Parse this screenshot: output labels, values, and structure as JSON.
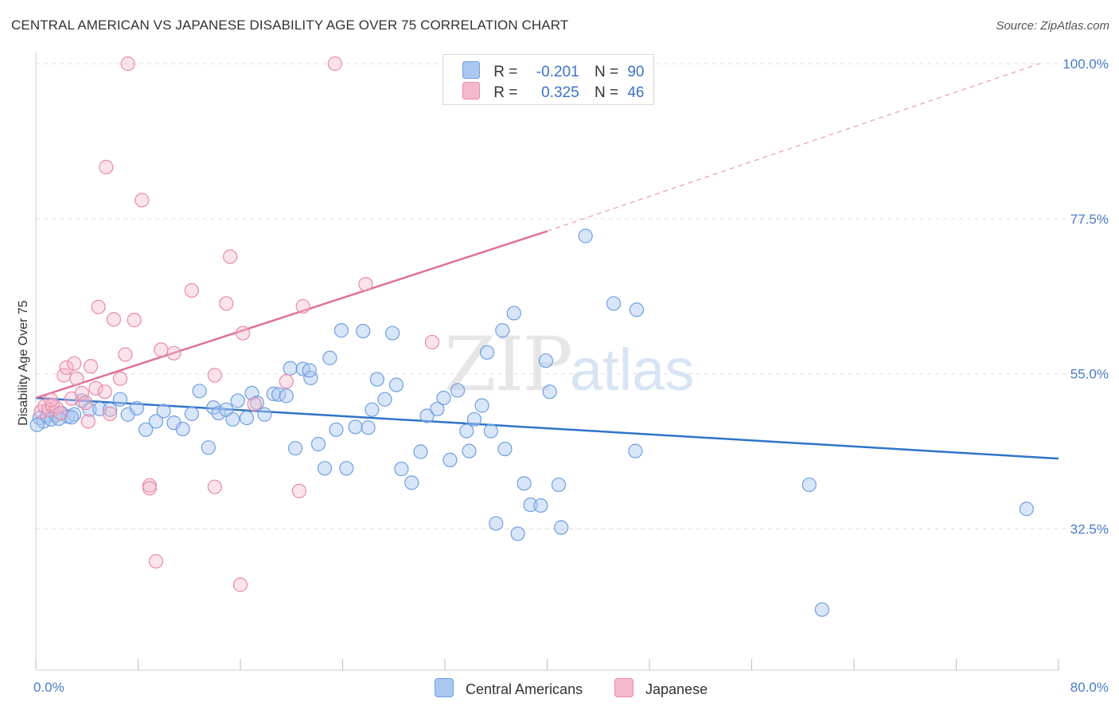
{
  "title": "CENTRAL AMERICAN VS JAPANESE DISABILITY AGE OVER 75 CORRELATION CHART",
  "source": "Source: ZipAtlas.com",
  "watermark": {
    "zip": "ZIP",
    "atlas": "atlas"
  },
  "colors": {
    "blue": "#6f9fe0",
    "blue_fill": "#aac7f2",
    "blue_line": "#2e74c8",
    "pink": "#e88aa8",
    "pink_fill": "#f5b9cc",
    "pink_line": "#e07099",
    "tick_text": "#4a7cc9",
    "grid": "#dddddd"
  },
  "legend": {
    "r_label": "R =",
    "n_label": "N =",
    "blue": {
      "r": "-0.201",
      "n": "90"
    },
    "pink": {
      "r": "0.325",
      "n": "46"
    }
  },
  "bottom_legend": {
    "blue": "Central Americans",
    "pink": "Japanese"
  },
  "chart_data": {
    "type": "scatter",
    "title": "CENTRAL AMERICAN VS JAPANESE DISABILITY AGE OVER 75 CORRELATION CHART",
    "xlabel": "",
    "ylabel": "Disability Age Over 75",
    "xlim": [
      0,
      80
    ],
    "ylim": [
      12,
      100
    ],
    "x_tick_labels": [
      "0.0%",
      "80.0%"
    ],
    "y_ticks": [
      32.5,
      55.0,
      77.5,
      100.0
    ],
    "y_tick_labels": [
      "32.5%",
      "55.0%",
      "77.5%",
      "100.0%"
    ],
    "grid": true,
    "legend_placement": "top-center",
    "series": [
      {
        "name": "Central Americans",
        "color": "#6f9fe0",
        "trend": {
          "x": [
            0,
            80
          ],
          "y": [
            51.5,
            42.7
          ]
        },
        "points": [
          [
            0.3,
            48.6
          ],
          [
            0.6,
            48.1
          ],
          [
            0.9,
            48.9
          ],
          [
            1.2,
            48.4
          ],
          [
            1.6,
            49.0
          ],
          [
            2.0,
            49.3
          ],
          [
            2.5,
            48.8
          ],
          [
            3.0,
            49.1
          ],
          [
            3.6,
            51.1
          ],
          [
            4.2,
            49.8
          ],
          [
            5.0,
            49.9
          ],
          [
            5.8,
            49.8
          ],
          [
            6.6,
            51.3
          ],
          [
            7.2,
            49.1
          ],
          [
            7.9,
            50.0
          ],
          [
            8.6,
            46.9
          ],
          [
            9.4,
            48.1
          ],
          [
            10.0,
            49.6
          ],
          [
            10.8,
            47.9
          ],
          [
            11.5,
            47.0
          ],
          [
            12.2,
            49.2
          ],
          [
            12.8,
            52.5
          ],
          [
            13.5,
            44.3
          ],
          [
            13.9,
            50.1
          ],
          [
            14.3,
            49.3
          ],
          [
            14.9,
            49.8
          ],
          [
            15.4,
            48.4
          ],
          [
            15.8,
            51.1
          ],
          [
            16.5,
            48.6
          ],
          [
            16.9,
            52.2
          ],
          [
            17.3,
            50.8
          ],
          [
            17.9,
            49.1
          ],
          [
            18.6,
            52.1
          ],
          [
            19.0,
            52.0
          ],
          [
            19.6,
            51.8
          ],
          [
            19.9,
            55.8
          ],
          [
            20.3,
            44.2
          ],
          [
            20.9,
            55.7
          ],
          [
            21.5,
            54.4
          ],
          [
            22.1,
            44.8
          ],
          [
            22.6,
            41.3
          ],
          [
            23.0,
            57.3
          ],
          [
            23.5,
            46.9
          ],
          [
            23.9,
            61.3
          ],
          [
            24.3,
            41.3
          ],
          [
            25.0,
            47.3
          ],
          [
            25.6,
            61.2
          ],
          [
            26.3,
            49.8
          ],
          [
            26.7,
            54.2
          ],
          [
            27.3,
            51.3
          ],
          [
            27.9,
            60.9
          ],
          [
            28.2,
            53.4
          ],
          [
            28.6,
            41.2
          ],
          [
            29.4,
            39.2
          ],
          [
            30.1,
            43.7
          ],
          [
            30.6,
            48.9
          ],
          [
            31.4,
            49.9
          ],
          [
            31.9,
            51.5
          ],
          [
            32.4,
            42.5
          ],
          [
            33.0,
            52.6
          ],
          [
            33.7,
            46.7
          ],
          [
            33.9,
            43.8
          ],
          [
            34.3,
            48.4
          ],
          [
            34.9,
            50.4
          ],
          [
            35.3,
            58.1
          ],
          [
            35.6,
            46.7
          ],
          [
            36.0,
            33.3
          ],
          [
            36.5,
            61.3
          ],
          [
            36.7,
            44.1
          ],
          [
            37.4,
            63.8
          ],
          [
            37.7,
            31.8
          ],
          [
            38.2,
            39.1
          ],
          [
            38.7,
            36.0
          ],
          [
            39.5,
            35.9
          ],
          [
            39.9,
            56.9
          ],
          [
            40.2,
            52.4
          ],
          [
            40.9,
            38.9
          ],
          [
            41.1,
            32.7
          ],
          [
            43.0,
            75.0
          ],
          [
            45.2,
            65.2
          ],
          [
            46.9,
            43.8
          ],
          [
            47.0,
            64.3
          ],
          [
            60.5,
            38.9
          ],
          [
            61.5,
            20.8
          ],
          [
            77.5,
            35.4
          ],
          [
            0.1,
            47.6
          ],
          [
            1.8,
            48.5
          ],
          [
            2.8,
            48.7
          ],
          [
            21.4,
            55.5
          ],
          [
            26.0,
            47.2
          ]
        ]
      },
      {
        "name": "Japanese",
        "color": "#e88aa8",
        "trend": {
          "x": [
            0,
            40
          ],
          "y": [
            51.5,
            75.7
          ]
        },
        "trend_dashed": {
          "x": [
            40,
            78.5
          ],
          "y": [
            75.7,
            100
          ]
        },
        "points": [
          [
            0.4,
            49.5
          ],
          [
            0.7,
            50.3
          ],
          [
            1.0,
            49.8
          ],
          [
            1.3,
            50.4
          ],
          [
            1.6,
            50.1
          ],
          [
            1.9,
            49.3
          ],
          [
            2.2,
            54.8
          ],
          [
            2.4,
            55.9
          ],
          [
            2.8,
            51.4
          ],
          [
            3.0,
            56.5
          ],
          [
            3.2,
            54.3
          ],
          [
            3.6,
            52.2
          ],
          [
            3.9,
            50.8
          ],
          [
            4.1,
            48.1
          ],
          [
            4.3,
            56.1
          ],
          [
            4.7,
            52.9
          ],
          [
            4.9,
            64.7
          ],
          [
            5.4,
            52.4
          ],
          [
            5.5,
            85.0
          ],
          [
            5.8,
            49.2
          ],
          [
            6.1,
            62.9
          ],
          [
            6.6,
            54.3
          ],
          [
            7.0,
            57.8
          ],
          [
            7.7,
            62.8
          ],
          [
            8.3,
            80.2
          ],
          [
            8.9,
            38.8
          ],
          [
            8.9,
            38.4
          ],
          [
            9.4,
            27.8
          ],
          [
            9.8,
            58.5
          ],
          [
            10.8,
            58.0
          ],
          [
            12.2,
            67.1
          ],
          [
            14.0,
            54.8
          ],
          [
            14.0,
            38.6
          ],
          [
            14.9,
            65.2
          ],
          [
            15.2,
            72.0
          ],
          [
            16.0,
            24.4
          ],
          [
            16.2,
            60.9
          ],
          [
            17.1,
            50.6
          ],
          [
            19.6,
            53.9
          ],
          [
            20.6,
            38.0
          ],
          [
            20.9,
            64.8
          ],
          [
            23.4,
            100.0
          ],
          [
            25.8,
            68.0
          ],
          [
            7.2,
            100.0
          ],
          [
            31.0,
            59.6
          ],
          [
            1.2,
            51.2
          ]
        ]
      }
    ]
  }
}
